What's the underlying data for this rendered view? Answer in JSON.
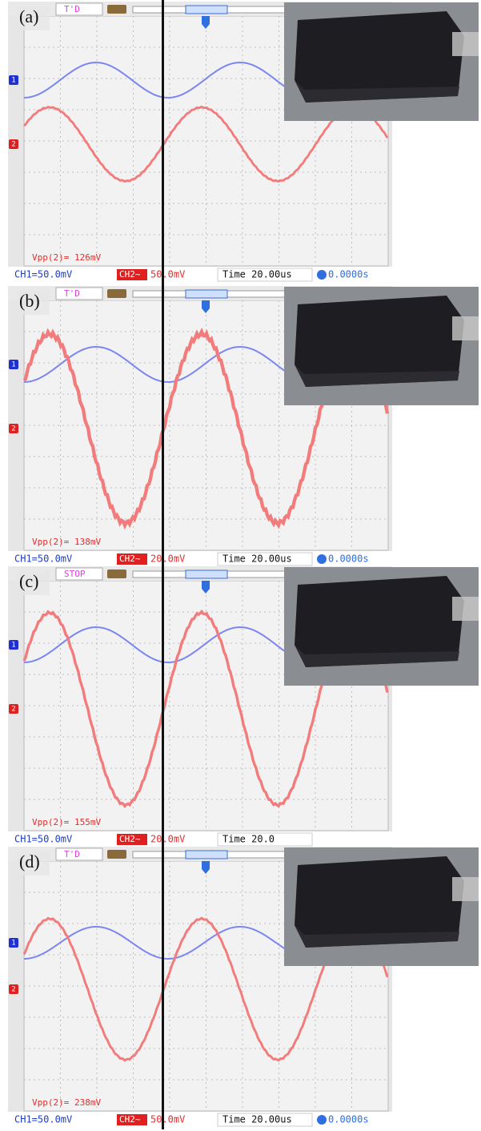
{
  "panels": [
    {
      "label": "(a)",
      "status": "T'D",
      "ch1_marker": "1",
      "ch2_marker": "2",
      "measurement": "Vpp(2)= 126mV",
      "ch1": "CH1=50.0mV",
      "ch2": "CH2~",
      "ch2_scale": "50.0mV",
      "time": "Time 20.00us",
      "offset": "0.0000s"
    },
    {
      "label": "(b)",
      "status": "T'D",
      "ch1_marker": "1",
      "ch2_marker": "2",
      "measurement": "Vpp(2)= 138mV",
      "ch1": "CH1=50.0mV",
      "ch2": "CH2~",
      "ch2_scale": "20.0mV",
      "time": "Time 20.00us",
      "offset": "0.0000s"
    },
    {
      "label": "(c)",
      "status": "STOP",
      "ch1_marker": "1",
      "ch2_marker": "2",
      "measurement": "Vpp(2)= 155mV",
      "ch1": "CH1=50.0mV",
      "ch2": "CH2~",
      "ch2_scale": "20.0mV",
      "time": "Time 20.0"
    },
    {
      "label": "(d)",
      "status": "T'D",
      "ch1_marker": "1",
      "ch2_marker": "2",
      "measurement": "Vpp(2)= 238mV",
      "ch1": "CH1=50.0mV",
      "ch2": "CH2~",
      "ch2_scale": "50.0mV",
      "time": "Time 20.00us",
      "offset": "0.0000s"
    }
  ]
}
